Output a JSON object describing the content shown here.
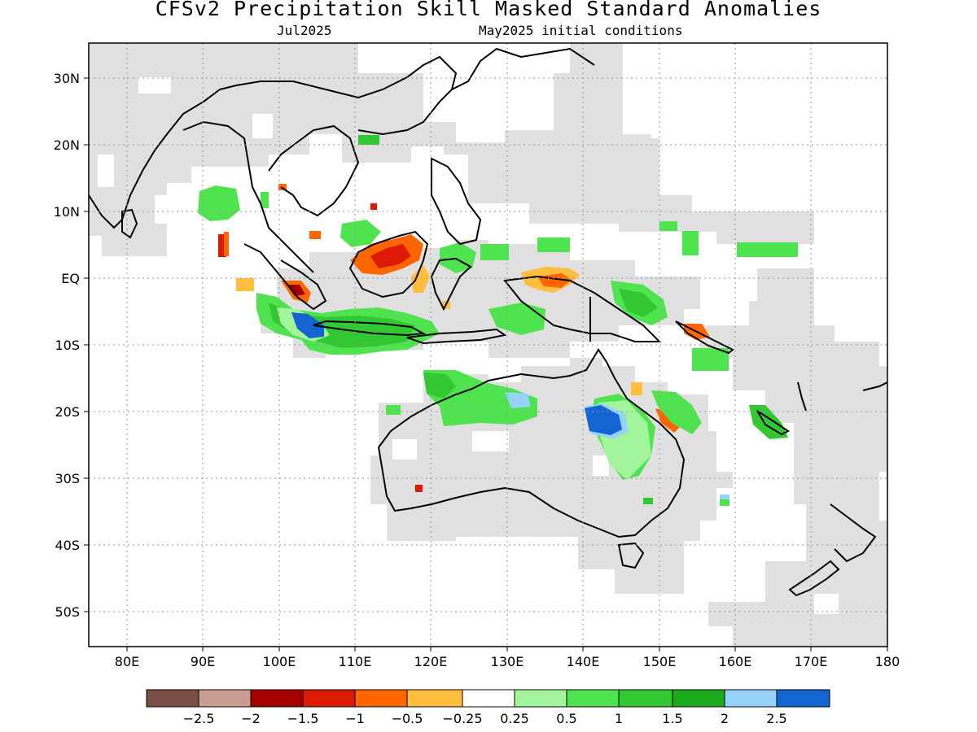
{
  "title": "CFSv2 Precipitation Skill Masked Standard Anomalies",
  "subtitle_left": "Jul2025",
  "subtitle_right": "May2025 initial conditions",
  "map": {
    "lon_range": [
      75,
      180
    ],
    "lat_range": [
      -55,
      35
    ],
    "y_ticks": [
      "30N",
      "20N",
      "10N",
      "EQ",
      "10S",
      "20S",
      "30S",
      "40S",
      "50S"
    ],
    "x_ticks": [
      "80E",
      "90E",
      "100E",
      "110E",
      "120E",
      "130E",
      "140E",
      "150E",
      "160E",
      "170E",
      "180"
    ],
    "grid": true,
    "mask_color": "#e0e0e0"
  },
  "colorbar": {
    "colors": [
      "#7a4f45",
      "#c99d92",
      "#a50000",
      "#dd1a05",
      "#ff6600",
      "#ffbe3d",
      "#ffffff",
      "#a2f59a",
      "#50e350",
      "#32c832",
      "#1ea81e",
      "#96d2fa",
      "#1464d2"
    ],
    "labels": [
      "−2.5",
      "−2",
      "−1.5",
      "−1",
      "−0.5",
      "−0.25",
      "0.25",
      "0.5",
      "1",
      "1.5",
      "2",
      "2.5"
    ]
  }
}
